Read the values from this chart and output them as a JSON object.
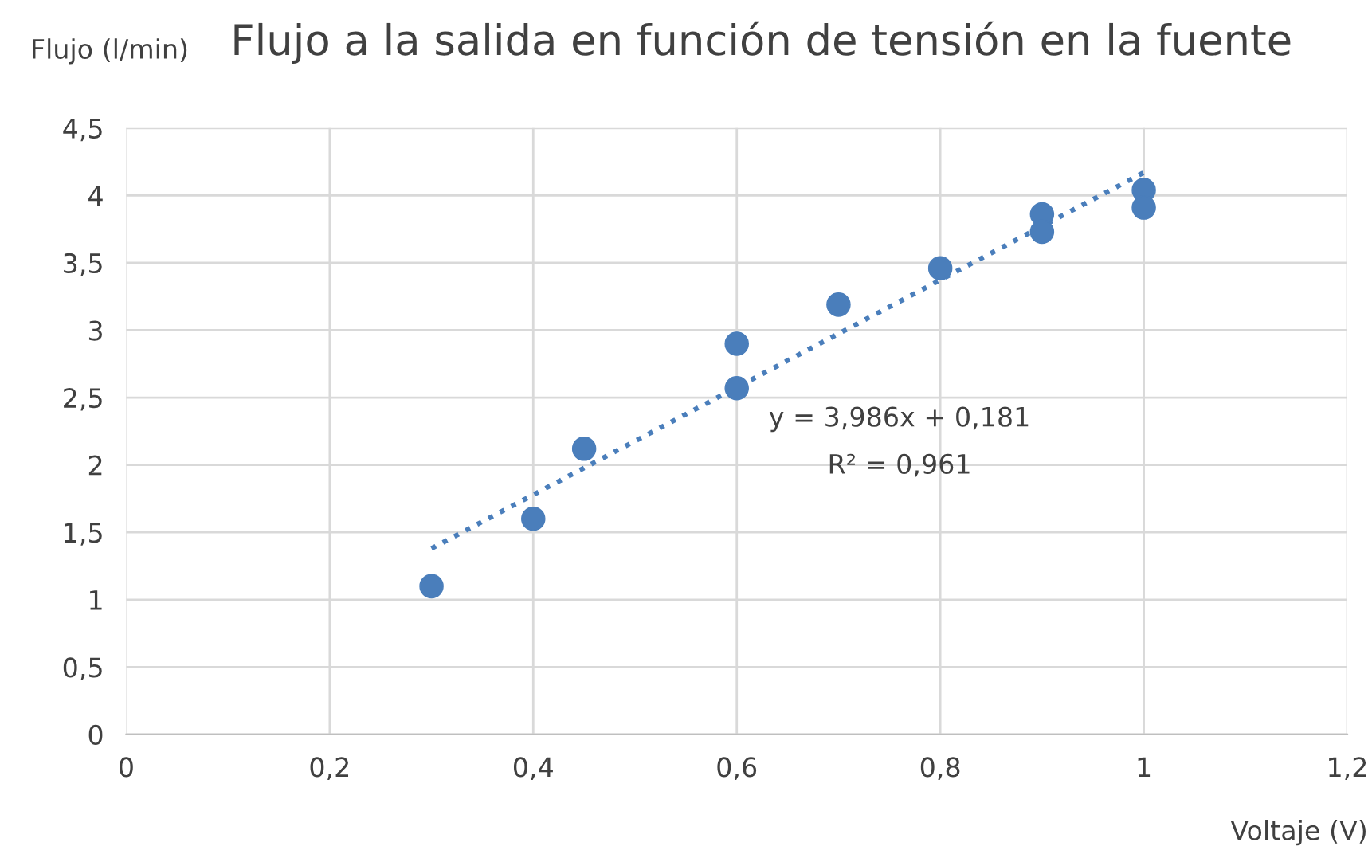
{
  "chart_data": {
    "type": "scatter",
    "title": "Flujo a la salida en función de tensión en la fuente",
    "xlabel": "Voltaje (V)",
    "ylabel": "Flujo (l/min)",
    "series": [
      {
        "type": "scatter",
        "color": "#4a7ebb",
        "marker": "circle",
        "x": [
          0.3,
          0.4,
          0.45,
          0.6,
          0.6,
          0.7,
          0.8,
          0.9,
          0.9,
          1.0,
          1.0
        ],
        "values": [
          1.1,
          1.6,
          2.12,
          2.9,
          2.57,
          3.19,
          3.46,
          3.86,
          3.73,
          4.04,
          3.91
        ]
      },
      {
        "type": "line",
        "color": "#4a7ebb",
        "line_style": "dotted",
        "x": [
          0.3,
          1.0
        ],
        "values": [
          1.38,
          4.17
        ]
      }
    ],
    "annotations": [
      "y = 3,986x + 0,181",
      "R² = 0,961"
    ],
    "xlim": [
      0,
      1.2
    ],
    "ylim": [
      0,
      4.5
    ],
    "xticks": [
      0,
      {
        "value": 0.2,
        "label": "0,2"
      },
      {
        "value": 0.4,
        "label": "0,4"
      },
      {
        "value": 0.6,
        "label": "0,6"
      },
      {
        "value": 0.8,
        "label": "0,8"
      },
      1,
      {
        "value": 1.2,
        "label": "1,2"
      }
    ],
    "yticks": [
      0,
      {
        "value": 0.5,
        "label": "0,5"
      },
      1,
      {
        "value": 1.5,
        "label": "1,5"
      },
      2,
      {
        "value": 2.5,
        "label": "2,5"
      },
      3,
      {
        "value": 3.5,
        "label": "3,5"
      },
      4,
      {
        "value": 4.5,
        "label": "4,5"
      }
    ],
    "grid": true,
    "legend": false
  }
}
